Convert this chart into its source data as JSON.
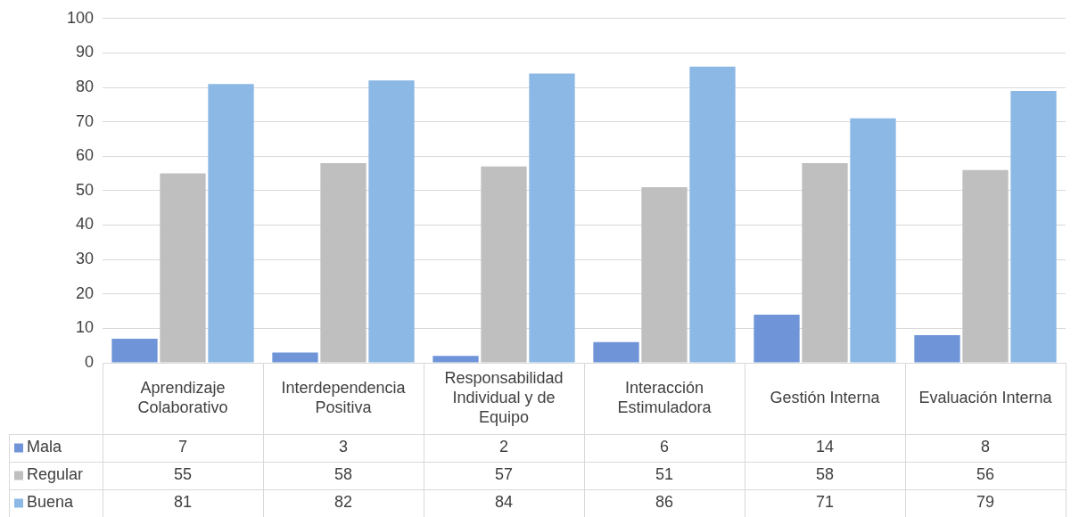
{
  "chart_data": {
    "type": "bar",
    "categories": [
      "Aprendizaje Colaborativo",
      "Interdependencia Positiva",
      "Responsabilidad Individual y de Equipo",
      "Interacción Estimuladora",
      "Gestión Interna",
      "Evaluación Interna"
    ],
    "series": [
      {
        "name": "Mala",
        "color": "#6f95d8",
        "values": [
          7,
          3,
          2,
          6,
          14,
          8
        ]
      },
      {
        "name": "Regular",
        "color": "#bfbfbf",
        "values": [
          55,
          58,
          57,
          51,
          58,
          56
        ]
      },
      {
        "name": "Buena",
        "color": "#8bb8e4",
        "values": [
          81,
          82,
          84,
          86,
          71,
          79
        ]
      }
    ],
    "ylim": [
      0,
      100
    ],
    "yticks": [
      0,
      10,
      20,
      30,
      40,
      50,
      60,
      70,
      80,
      90,
      100
    ],
    "grid": "y",
    "legend": "bottom",
    "data_labels": true
  }
}
